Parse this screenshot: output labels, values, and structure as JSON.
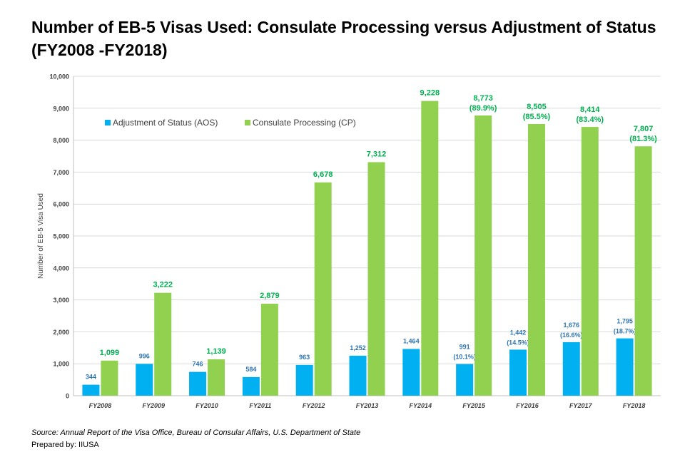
{
  "chart_data": {
    "type": "bar",
    "title_line1": "Number of EB-5 Visas Used: Consulate Processing versus Adjustment of Status",
    "title_line2": "(FY2008 -FY2018)",
    "ylabel": "Number of EB-5 Visa Used",
    "xlabel": "",
    "ylim": [
      0,
      10000
    ],
    "yticks": [
      "0",
      "1,000",
      "2,000",
      "3,000",
      "4,000",
      "5,000",
      "6,000",
      "7,000",
      "8,000",
      "9,000",
      "10,000"
    ],
    "grid": true,
    "legend_position": "top-left",
    "categories": [
      "FY2008",
      "FY2009",
      "FY2010",
      "FY2011",
      "FY2012",
      "FY2013",
      "FY2014",
      "FY2015",
      "FY2016",
      "FY2017",
      "FY2018"
    ],
    "series": [
      {
        "name": "Adjustment of Status (AOS)",
        "color": "#00B0F0",
        "label_color": "#2E75B6",
        "values": [
          344,
          996,
          746,
          584,
          963,
          1252,
          1464,
          991,
          1442,
          1676,
          1795
        ],
        "labels": [
          "344",
          "996",
          "746",
          "584",
          "963",
          "1,252",
          "1,464",
          "991",
          "1,442",
          "1,676",
          "1,795"
        ],
        "sublabels": [
          "",
          "",
          "",
          "",
          "",
          "",
          "",
          "(10.1%)",
          "(14.5%)",
          "(16.6%)",
          "(18.7%)"
        ]
      },
      {
        "name": "Consulate Processing (CP)",
        "color": "#92D050",
        "label_color": "#00B050",
        "values": [
          1099,
          3222,
          1139,
          2879,
          6678,
          7312,
          9228,
          8773,
          8505,
          8414,
          7807
        ],
        "labels": [
          "1,099",
          "3,222",
          "1,139",
          "2,879",
          "6,678",
          "7,312",
          "9,228",
          "8,773",
          "8,505",
          "8,414",
          "7,807"
        ],
        "sublabels": [
          "",
          "",
          "",
          "",
          "",
          "",
          "",
          "(89.9%)",
          "(85.5%)",
          "(83.4%)",
          "(81.3%)"
        ]
      }
    ]
  },
  "footer": {
    "source": "Source: Annual Report of the Visa Office, Bureau of Consular Affairs, U.S. Department of State",
    "prepared": "Prepared by: IIUSA"
  }
}
